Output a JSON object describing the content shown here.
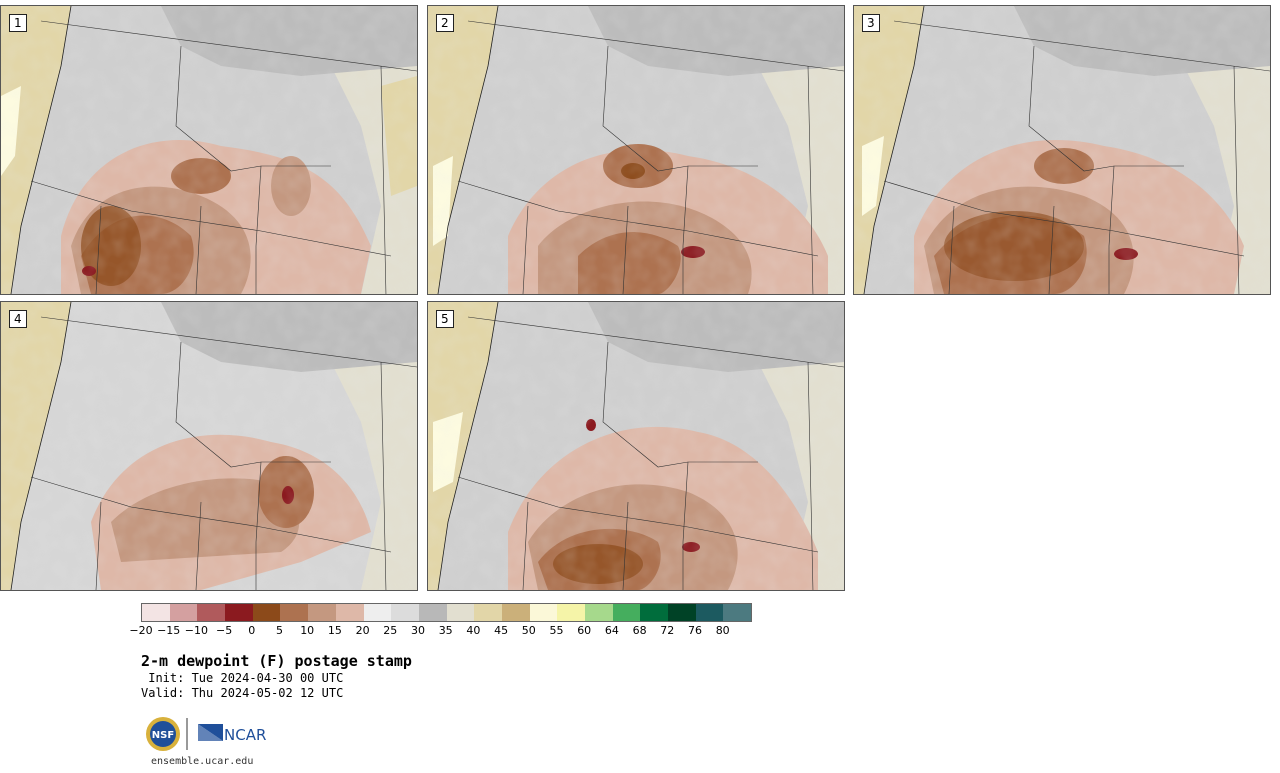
{
  "panels": [
    {
      "label": "1"
    },
    {
      "label": "2"
    },
    {
      "label": "3"
    },
    {
      "label": "4"
    },
    {
      "label": "5"
    }
  ],
  "colorbar": {
    "colors": [
      "#f3e4e4",
      "#d4a0a0",
      "#b05a5c",
      "#8b1a1f",
      "#8c4a1a",
      "#ad7250",
      "#c49880",
      "#deb8a8",
      "#eeeeee",
      "#dcdcdc",
      "#b8b8b8",
      "#e2dfd0",
      "#e2d6a8",
      "#cbb07a",
      "#fbf8d8",
      "#f5f4a8",
      "#a6d98c",
      "#45ae5e",
      "#006d3c",
      "#004226",
      "#1c5a60",
      "#4c7a80"
    ],
    "ticks": [
      "−20",
      "−15",
      "−10",
      "−5",
      "0",
      "5",
      "10",
      "15",
      "20",
      "25",
      "30",
      "35",
      "40",
      "45",
      "50",
      "55",
      "60",
      "64",
      "68",
      "72",
      "76",
      "80"
    ]
  },
  "title": "2-m dewpoint (F) postage stamp",
  "init": " Init: Tue 2024-04-30 00 UTC",
  "valid": "Valid: Thu 2024-05-02 12 UTC",
  "logos": {
    "nsf": "NSF",
    "ncar": "NCAR"
  },
  "site": "ensemble.ucar.edu"
}
